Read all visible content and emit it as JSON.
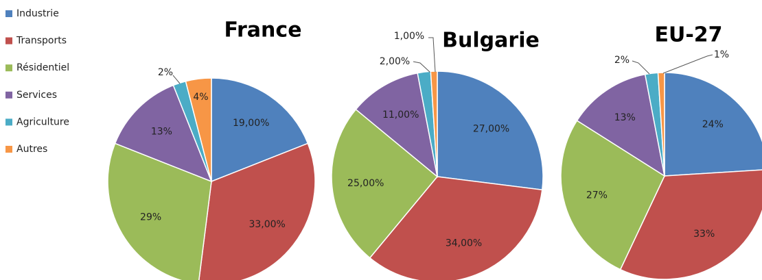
{
  "legend": {
    "labels": [
      "Industrie",
      "Transports",
      "Résidentiel",
      "Services",
      "Agriculture",
      "Autres"
    ],
    "colors": [
      "#4f81bd",
      "#c0504d",
      "#9bbb59",
      "#8064a2",
      "#4bacc6",
      "#f79646"
    ]
  },
  "chart_data": [
    {
      "type": "pie",
      "title": "France",
      "values": [
        19,
        33,
        29,
        13,
        2,
        4
      ],
      "value_labels": [
        "19,00%",
        "33,00%",
        "29%",
        "13%",
        "2%",
        "4%"
      ]
    },
    {
      "type": "pie",
      "title": "Bulgarie",
      "values": [
        27,
        34,
        25,
        11,
        2,
        1
      ],
      "value_labels": [
        "27,00%",
        "34,00%",
        "25,00%",
        "11,00%",
        "2,00%",
        "1,00%"
      ]
    },
    {
      "type": "pie",
      "title": "EU-27",
      "values": [
        24,
        33,
        27,
        13,
        2,
        1
      ],
      "value_labels": [
        "24%",
        "33%",
        "27%",
        "13%",
        "2%",
        "1%"
      ]
    }
  ]
}
